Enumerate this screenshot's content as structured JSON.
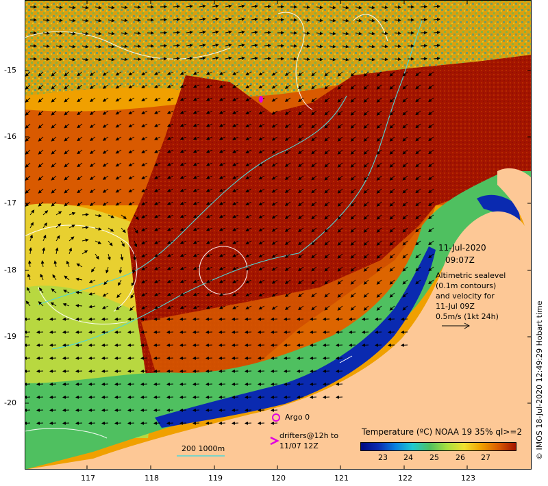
{
  "map": {
    "lon_ticks": [
      "117",
      "118",
      "119",
      "120",
      "121",
      "122",
      "123"
    ],
    "lat_ticks": [
      "-15",
      "-16",
      "-17",
      "-18",
      "-19",
      "-20"
    ]
  },
  "info": {
    "date": "11-Jul-2020",
    "time": "09:07Z",
    "line1": "Altimetric sealevel",
    "line2": "(0.1m contours)",
    "line3": "and velocity for",
    "line4": "11-Jul 09Z",
    "line5": "0.5m/s (1kt 24h)"
  },
  "legend": {
    "argo": "Argo 0",
    "drifters_line1": "drifters@12h to",
    "drifters_line2": "11/07 12Z",
    "depth": "200  1000m",
    "colorbar_title": "Temperature (ºC) NOAA 19 35% ql>=2",
    "colorbar_ticks": [
      "23",
      "24",
      "25",
      "26",
      "27"
    ]
  },
  "credit": "© IMOS 18-Jul-2020 12:49:29 Hobart time",
  "colors": {
    "land": "#fdc896",
    "hot": "#a31400",
    "warm": "#d95a00",
    "mid": "#f0a000",
    "cool": "#f0e030",
    "green": "#4fc060",
    "blue": "#0a2ab0",
    "navy": "#000a80"
  }
}
